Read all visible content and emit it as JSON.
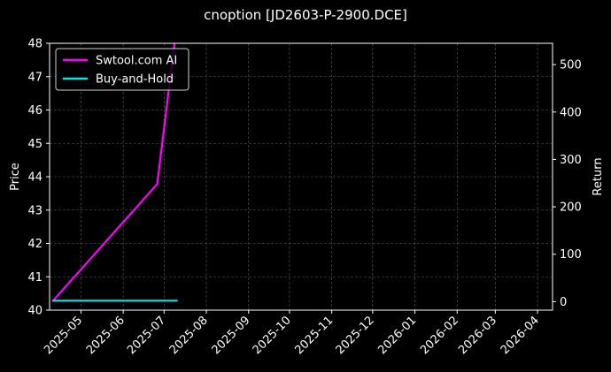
{
  "chart_data": {
    "type": "line",
    "title": "cnoption [JD2603-P-2900.DCE]",
    "xlabel": "",
    "ylabel": "Price",
    "y2label": "Return",
    "xlim": [
      "2025-04-08",
      "2026-04-12"
    ],
    "ylim": [
      40,
      48
    ],
    "y2lim": [
      -18,
      545
    ],
    "x_tick_labels": [
      "2025-05",
      "2025-06",
      "2025-07",
      "2025-08",
      "2025-09",
      "2025-10",
      "2025-11",
      "2025-12",
      "2026-01",
      "2026-02",
      "2026-03",
      "2026-04"
    ],
    "x_tick_dates": [
      "2025-05-01",
      "2025-06-01",
      "2025-07-01",
      "2025-08-01",
      "2025-09-01",
      "2025-10-01",
      "2025-11-01",
      "2025-12-01",
      "2026-01-01",
      "2026-02-01",
      "2026-03-01",
      "2026-04-01"
    ],
    "y_ticks": [
      40,
      41,
      42,
      43,
      44,
      45,
      46,
      47,
      48
    ],
    "y2_ticks": [
      0,
      100,
      200,
      300,
      400,
      500
    ],
    "grid": true,
    "legend_position": "top-left",
    "series": [
      {
        "name": "Swtool.com AI",
        "axis": "right",
        "color": "#ff00ff",
        "x": [
          "2025-04-10",
          "2025-06-26",
          "2025-07-11"
        ],
        "values": [
          0,
          248,
          600
        ]
      },
      {
        "name": "Buy-and-Hold",
        "axis": "right",
        "color": "#00e5ee",
        "x": [
          "2025-04-10",
          "2025-07-11"
        ],
        "values": [
          2,
          2
        ]
      }
    ]
  }
}
